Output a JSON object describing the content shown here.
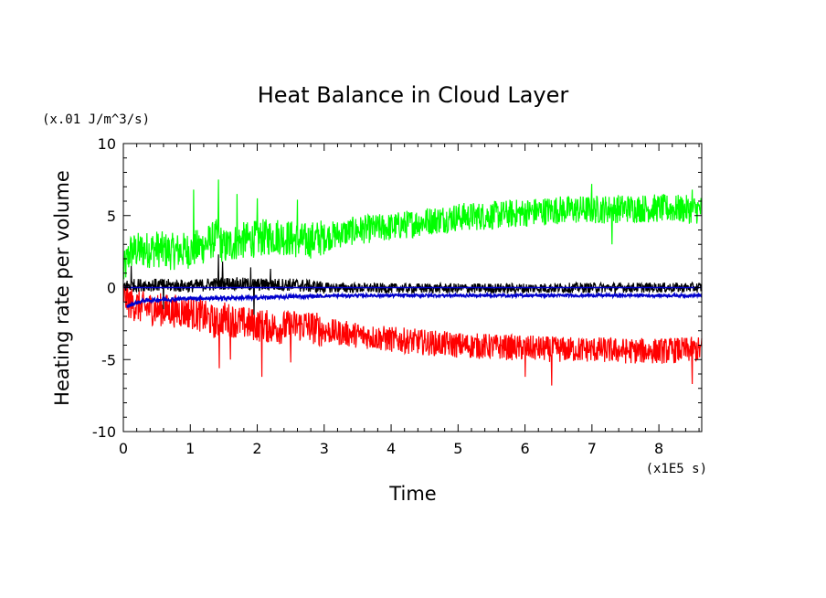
{
  "chart_data": {
    "type": "line",
    "title": "Heat Balance in Cloud Layer",
    "xlabel": "Time",
    "ylabel": "Heating rate per volume",
    "x_unit": "(x1E5 s)",
    "y_unit": "(x.01 J/m^3/s)",
    "xlim": [
      0,
      8.64
    ],
    "ylim": [
      -10,
      10
    ],
    "x_ticks": [
      "0",
      "1",
      "2",
      "3",
      "4",
      "5",
      "6",
      "7",
      "8"
    ],
    "y_ticks": [
      "-10",
      "-5",
      "0",
      "5",
      "10"
    ],
    "legend": "none",
    "grid": false,
    "series": [
      {
        "color": "#00ff00",
        "x": [
          0,
          0.1,
          0.3,
          0.5,
          0.7,
          1.0,
          1.2,
          1.4,
          1.5,
          1.7,
          2.0,
          2.3,
          2.5,
          2.7,
          3.0,
          3.5,
          4.0,
          4.5,
          5.0,
          5.5,
          6.0,
          6.5,
          7.0,
          7.5,
          8.0,
          8.64
        ],
        "y": [
          1.0,
          2.5,
          2.6,
          2.7,
          2.5,
          2.6,
          2.9,
          3.5,
          2.8,
          3.2,
          3.4,
          3.6,
          3.4,
          3.2,
          3.5,
          4.0,
          4.2,
          4.6,
          4.9,
          5.0,
          5.2,
          5.4,
          5.4,
          5.5,
          5.5,
          5.4
        ],
        "noise": 1.0,
        "spikes": [
          [
            1.42,
            7.5
          ],
          [
            1.05,
            6.8
          ],
          [
            2.0,
            6.2
          ],
          [
            1.7,
            6.5
          ],
          [
            2.6,
            6.1
          ],
          [
            7.0,
            7.2
          ],
          [
            7.3,
            3.0
          ],
          [
            8.5,
            6.8
          ]
        ]
      },
      {
        "color": "#ff0000",
        "x": [
          0,
          0.1,
          0.3,
          0.5,
          0.7,
          1.0,
          1.2,
          1.4,
          1.5,
          1.7,
          2.0,
          2.3,
          2.5,
          2.7,
          3.0,
          3.5,
          4.0,
          4.5,
          5.0,
          5.5,
          6.0,
          6.5,
          7.0,
          7.5,
          8.0,
          8.64
        ],
        "y": [
          -0.5,
          -1.1,
          -1.4,
          -1.5,
          -1.6,
          -1.7,
          -2.0,
          -2.5,
          -2.1,
          -2.4,
          -2.6,
          -2.8,
          -2.7,
          -2.6,
          -3.0,
          -3.3,
          -3.6,
          -3.8,
          -4.0,
          -4.1,
          -4.2,
          -4.3,
          -4.3,
          -4.4,
          -4.4,
          -4.3
        ],
        "noise": 0.9,
        "spikes": [
          [
            1.43,
            -5.6
          ],
          [
            2.07,
            -6.2
          ],
          [
            1.6,
            -5.0
          ],
          [
            2.5,
            -5.2
          ],
          [
            6.4,
            -6.8
          ],
          [
            8.5,
            -6.7
          ],
          [
            6.0,
            -6.2
          ]
        ]
      },
      {
        "color": "#000000",
        "x": [
          0,
          0.3,
          1.0,
          1.5,
          2.0,
          2.5,
          2.8,
          3.0,
          4.0,
          5.0,
          6.0,
          7.0,
          8.0,
          8.64
        ],
        "y": [
          0.1,
          0.2,
          0.1,
          0.3,
          0.2,
          0.2,
          0.1,
          0.0,
          -0.05,
          -0.05,
          -0.05,
          0.0,
          0.0,
          0.0
        ],
        "noise": 0.35,
        "spikes": [
          [
            0.12,
            1.5
          ],
          [
            1.42,
            2.3
          ],
          [
            1.48,
            1.8
          ],
          [
            2.2,
            1.3
          ],
          [
            1.9,
            1.4
          ],
          [
            0.6,
            -1.5
          ],
          [
            1.95,
            -1.9
          ]
        ]
      },
      {
        "color": "#0000cc",
        "x": [
          0,
          8.64
        ],
        "y": [
          0.0,
          0.0
        ],
        "noise": 0,
        "spikes": []
      },
      {
        "color": "#0000cc",
        "x": [
          0.05,
          0.3,
          1.0,
          2.0,
          2.8,
          3.5,
          5.0,
          7.0,
          8.64
        ],
        "y": [
          -1.3,
          -0.9,
          -0.75,
          -0.7,
          -0.6,
          -0.55,
          -0.55,
          -0.55,
          -0.55
        ],
        "noise": 0.1,
        "spikes": []
      }
    ]
  }
}
